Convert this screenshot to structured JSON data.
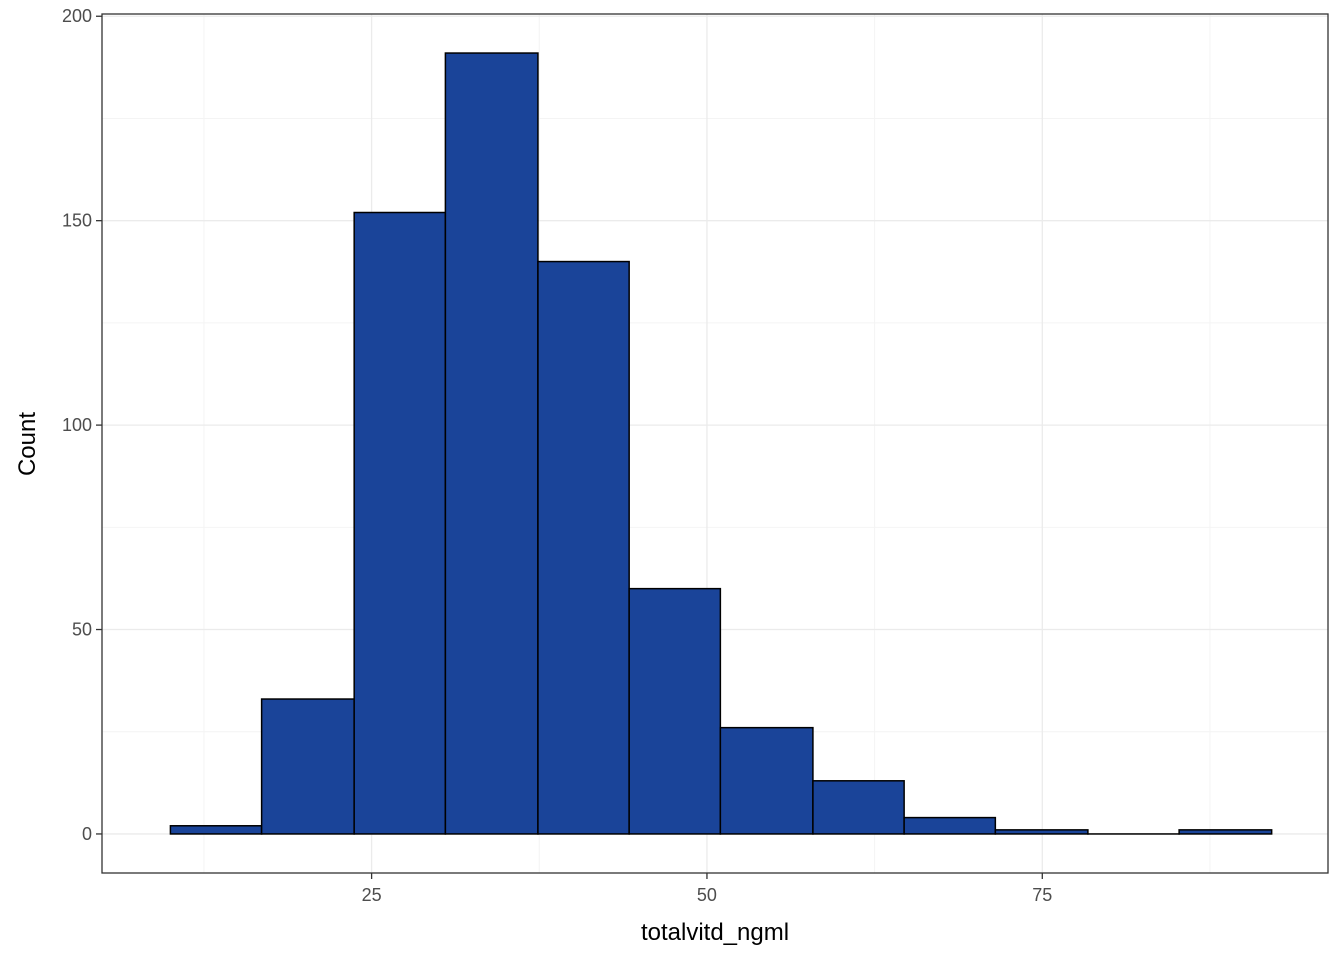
{
  "chart_data": {
    "type": "bar",
    "subtype": "histogram",
    "xlabel": "totalvitd_ngml",
    "ylabel": "Count",
    "xlim": [
      4.9,
      96.3
    ],
    "ylim": [
      -9.55,
      200.55
    ],
    "x_ticks": [
      25,
      50,
      75
    ],
    "x_minor_ticks": [
      12.5,
      37.5,
      62.5,
      87.5
    ],
    "y_ticks": [
      0,
      50,
      100,
      150,
      200
    ],
    "y_minor_ticks": [
      25,
      75,
      125,
      175
    ],
    "bins": [
      {
        "x0": 10.0,
        "x1": 16.8,
        "count": 2
      },
      {
        "x0": 16.8,
        "x1": 23.7,
        "count": 33
      },
      {
        "x0": 23.7,
        "x1": 30.5,
        "count": 152
      },
      {
        "x0": 30.5,
        "x1": 37.4,
        "count": 191
      },
      {
        "x0": 37.4,
        "x1": 44.2,
        "count": 140
      },
      {
        "x0": 44.2,
        "x1": 51.0,
        "count": 60
      },
      {
        "x0": 51.0,
        "x1": 57.9,
        "count": 26
      },
      {
        "x0": 57.9,
        "x1": 64.7,
        "count": 13
      },
      {
        "x0": 64.7,
        "x1": 71.5,
        "count": 4
      },
      {
        "x0": 71.5,
        "x1": 78.4,
        "count": 1
      },
      {
        "x0": 78.4,
        "x1": 85.2,
        "count": 0
      },
      {
        "x0": 85.2,
        "x1": 92.1,
        "count": 1
      }
    ],
    "grid": true,
    "legend": "none",
    "colors": {
      "bar_fill": "#1A4499",
      "bar_stroke": "#000000",
      "grid_major": "#EBEBEB",
      "grid_minor": "#F4F4F4",
      "panel_border": "#333333"
    }
  }
}
